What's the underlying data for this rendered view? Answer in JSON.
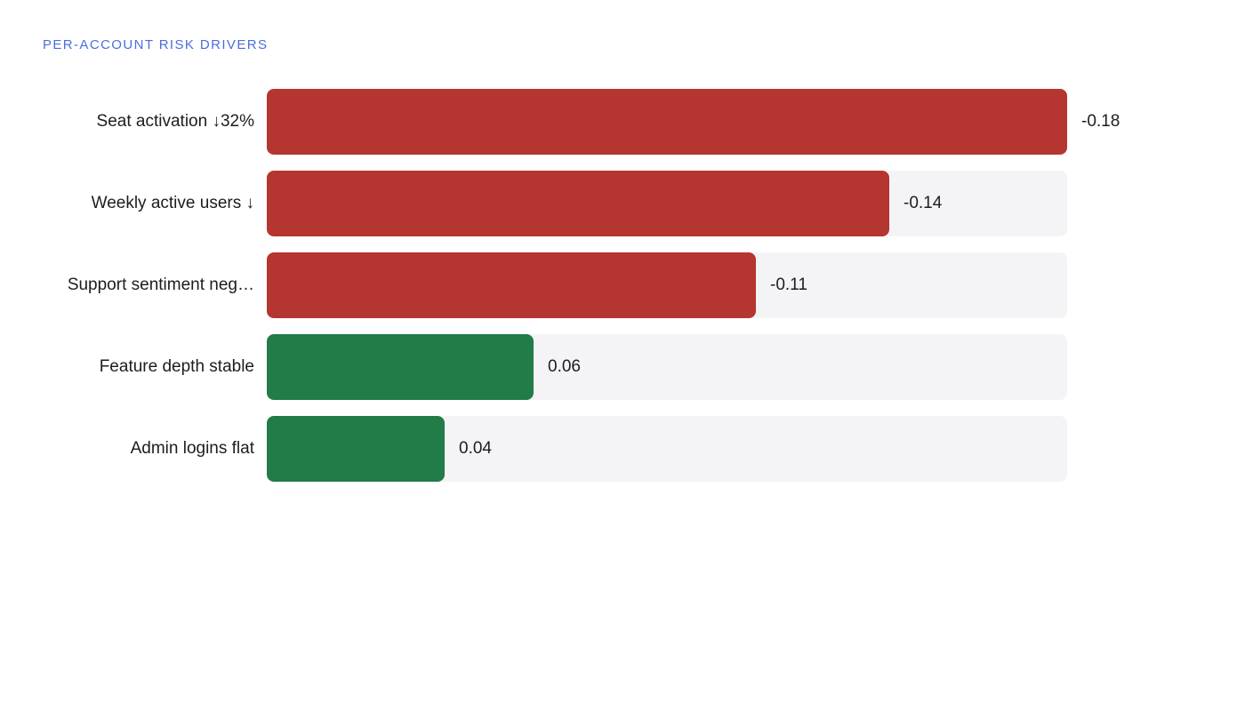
{
  "title": "PER-ACCOUNT RISK DRIVERS",
  "colors": {
    "negative": "#b53530",
    "positive": "#217c47",
    "track": "#f4f4f6",
    "title": "#4a6ee0"
  },
  "chart_data": {
    "type": "bar",
    "orientation": "horizontal",
    "title": "PER-ACCOUNT RISK DRIVERS",
    "categories": [
      "Seat activation ↓32%",
      "Weekly active users ↓",
      "Support sentiment neg…",
      "Feature depth stable",
      "Admin logins flat"
    ],
    "values": [
      -0.18,
      -0.14,
      -0.11,
      0.06,
      0.04
    ],
    "value_labels": [
      "-0.18",
      "-0.14",
      "-0.11",
      "0.06",
      "0.04"
    ],
    "max_abs": 0.18,
    "grid": false,
    "legend": "none"
  }
}
